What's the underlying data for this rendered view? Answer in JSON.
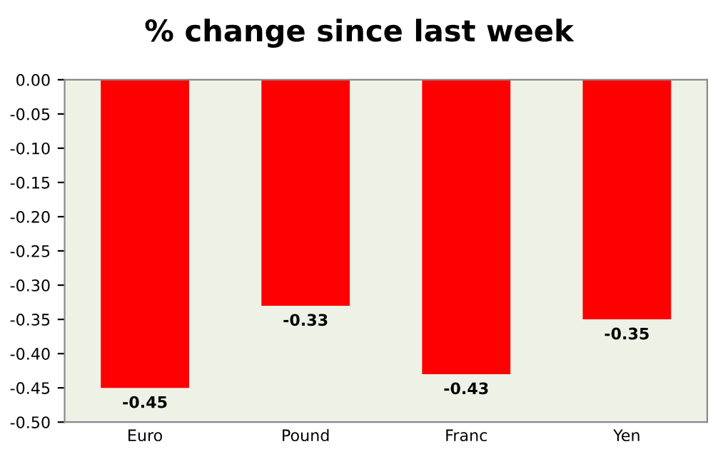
{
  "chart_data": {
    "type": "bar",
    "title": "% change since last week",
    "categories": [
      "Euro",
      "Pound",
      "Franc",
      "Yen"
    ],
    "values": [
      -0.45,
      -0.33,
      -0.43,
      -0.35
    ],
    "color": "#ff0000",
    "ylim": [
      -0.5,
      0
    ],
    "yticks": [
      {
        "value": 0,
        "label": "0.00"
      },
      {
        "value": -0.05,
        "label": "-0.05"
      },
      {
        "value": -0.1,
        "label": "-0.10"
      },
      {
        "value": -0.15,
        "label": "-0.15"
      },
      {
        "value": -0.2,
        "label": "-0.20"
      },
      {
        "value": -0.25,
        "label": "-0.25"
      },
      {
        "value": -0.3,
        "label": "-0.30"
      },
      {
        "value": -0.35,
        "label": "-0.35"
      },
      {
        "value": -0.4,
        "label": "-0.40"
      },
      {
        "value": -0.45,
        "label": "-0.45"
      },
      {
        "value": -0.5,
        "label": "-0.50"
      }
    ],
    "data_labels": true,
    "grid": false,
    "legend": false
  }
}
